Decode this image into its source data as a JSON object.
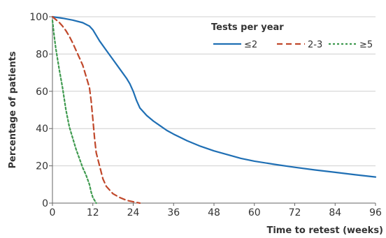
{
  "chart_data": {
    "type": "line",
    "xlabel": "Time to retest (weeks)",
    "ylabel": "Percentage of patients",
    "xlim": [
      0,
      96
    ],
    "ylim": [
      0,
      100
    ],
    "x_ticks": [
      0,
      12,
      24,
      36,
      48,
      60,
      72,
      84,
      96
    ],
    "y_ticks": [
      0,
      20,
      40,
      60,
      80,
      100
    ],
    "grid": "horizontal",
    "legend": {
      "title": "Tests per year",
      "placement": "top-right",
      "entries": [
        "≤2",
        "2-3",
        "≥5"
      ]
    },
    "series": [
      {
        "name": "≤2",
        "color": "#1f6fb4",
        "dash": "solid",
        "points": [
          [
            0,
            100
          ],
          [
            3,
            99.2
          ],
          [
            6,
            98.2
          ],
          [
            9,
            96.8
          ],
          [
            11,
            95
          ],
          [
            12,
            93
          ],
          [
            13,
            90
          ],
          [
            14,
            87
          ],
          [
            16,
            82
          ],
          [
            18,
            77
          ],
          [
            20,
            72
          ],
          [
            22,
            67
          ],
          [
            23,
            64
          ],
          [
            24,
            60
          ],
          [
            25,
            55
          ],
          [
            26,
            51
          ],
          [
            28,
            47
          ],
          [
            30,
            44
          ],
          [
            32,
            41.5
          ],
          [
            34,
            39
          ],
          [
            36,
            37
          ],
          [
            40,
            33.5
          ],
          [
            44,
            30.5
          ],
          [
            48,
            28
          ],
          [
            52,
            26
          ],
          [
            56,
            24
          ],
          [
            60,
            22.5
          ],
          [
            66,
            20.8
          ],
          [
            72,
            19.2
          ],
          [
            78,
            17.8
          ],
          [
            84,
            16.5
          ],
          [
            90,
            15.2
          ],
          [
            96,
            14
          ]
        ]
      },
      {
        "name": "2-3",
        "color": "#c0482b",
        "dash": "dashed",
        "points": [
          [
            0,
            100
          ],
          [
            1,
            98.5
          ],
          [
            2,
            97
          ],
          [
            3,
            95
          ],
          [
            4,
            92.5
          ],
          [
            5,
            89.5
          ],
          [
            6,
            86
          ],
          [
            7,
            82
          ],
          [
            8,
            78
          ],
          [
            9,
            74
          ],
          [
            10,
            68
          ],
          [
            11,
            62
          ],
          [
            11.5,
            55
          ],
          [
            12,
            45
          ],
          [
            12.5,
            35
          ],
          [
            13,
            27
          ],
          [
            14,
            20
          ],
          [
            15,
            13
          ],
          [
            16,
            9
          ],
          [
            18,
            5
          ],
          [
            20,
            3
          ],
          [
            22,
            1.5
          ],
          [
            24,
            0.7
          ],
          [
            26,
            0
          ]
        ]
      },
      {
        "name": "≥5",
        "color": "#3f9a4f",
        "dash": "dotted",
        "points": [
          [
            0,
            98
          ],
          [
            0.5,
            90
          ],
          [
            1,
            83
          ],
          [
            2,
            72
          ],
          [
            3,
            62
          ],
          [
            4,
            50
          ],
          [
            5,
            41
          ],
          [
            6,
            35
          ],
          [
            7,
            29
          ],
          [
            8,
            24
          ],
          [
            9,
            19
          ],
          [
            10,
            15
          ],
          [
            11,
            10
          ],
          [
            11.5,
            6
          ],
          [
            12,
            3
          ],
          [
            13,
            0
          ]
        ]
      }
    ]
  }
}
